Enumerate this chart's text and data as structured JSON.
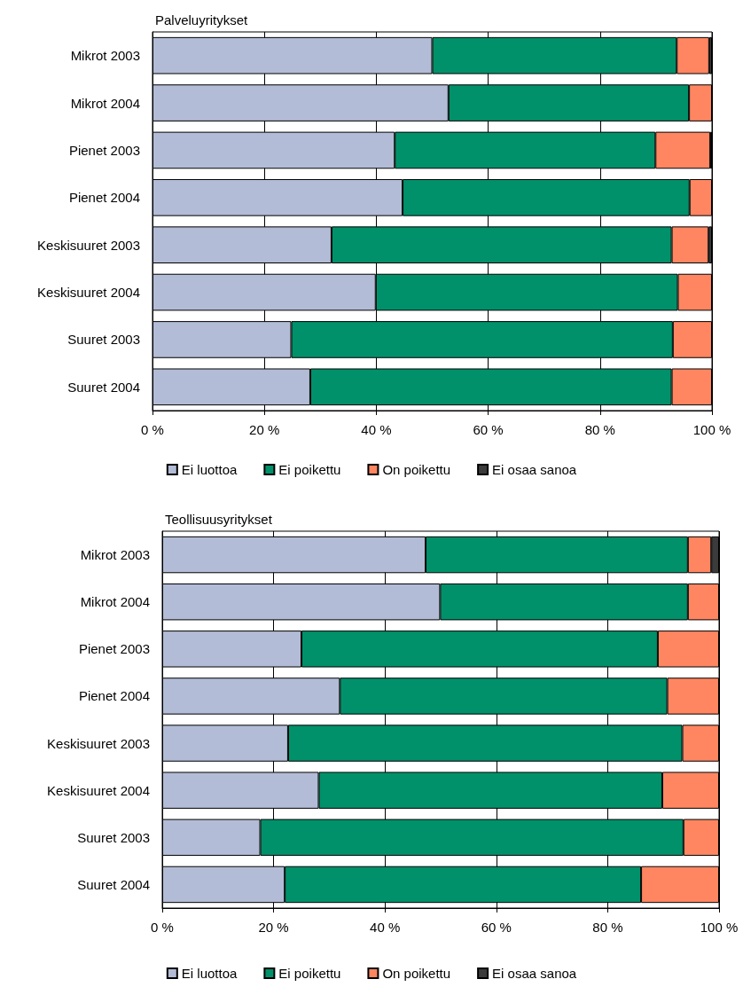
{
  "chart_data": [
    {
      "type": "bar",
      "orientation": "horizontal",
      "stacked": true,
      "title": "Palveluyritykset",
      "categories": [
        "Mikrot 2003",
        "Mikrot 2004",
        "Pienet 2003",
        "Pienet 2004",
        "Keskisuuret 2003",
        "Keskisuuret 2004",
        "Suuret 2003",
        "Suuret 2004"
      ],
      "series": [
        {
          "name": "Ei luottoa",
          "color": "#b2bcd6",
          "values": [
            50.0,
            52.9,
            43.3,
            44.7,
            32.0,
            39.9,
            24.8,
            28.2
          ]
        },
        {
          "name": "Ei poikettu",
          "color": "#00916a",
          "values": [
            43.7,
            43.0,
            46.6,
            51.3,
            60.8,
            54.0,
            68.2,
            64.6
          ]
        },
        {
          "name": "On poikettu",
          "color": "#ff8661",
          "values": [
            5.8,
            4.1,
            9.8,
            4.0,
            6.6,
            6.1,
            7.0,
            7.2
          ]
        },
        {
          "name": "Ei osaa sanoa",
          "color": "#3b3b3b",
          "values": [
            0.5,
            null,
            0.3,
            null,
            0.6,
            null,
            null,
            null
          ]
        }
      ],
      "xlim": [
        0,
        100
      ],
      "xticks": [
        {
          "value": 0,
          "label": "0 %"
        },
        {
          "value": 20,
          "label": "20 %"
        },
        {
          "value": 40,
          "label": "40 %"
        },
        {
          "value": 60,
          "label": "60 %"
        },
        {
          "value": 80,
          "label": "80 %"
        },
        {
          "value": 100,
          "label": "100 %"
        }
      ],
      "grid": "x",
      "legend": "bottom"
    },
    {
      "type": "bar",
      "orientation": "horizontal",
      "stacked": true,
      "title": "Teollisuusyritykset",
      "categories": [
        "Mikrot 2003",
        "Mikrot 2004",
        "Pienet 2003",
        "Pienet 2004",
        "Keskisuuret 2003",
        "Keskisuuret 2004",
        "Suuret 2003",
        "Suuret 2004"
      ],
      "series": [
        {
          "name": "Ei luottoa",
          "color": "#b2bcd6",
          "values": [
            47.3,
            49.9,
            25.0,
            31.9,
            22.6,
            28.1,
            17.6,
            22.0
          ]
        },
        {
          "name": "Ei poikettu",
          "color": "#00916a",
          "values": [
            47.1,
            44.5,
            64.0,
            58.8,
            70.8,
            61.7,
            76.0,
            64.0
          ]
        },
        {
          "name": "On poikettu",
          "color": "#ff8661",
          "values": [
            4.2,
            5.6,
            11.0,
            9.3,
            6.6,
            10.2,
            6.4,
            14.0
          ]
        },
        {
          "name": "Ei osaa sanoa",
          "color": "#3b3b3b",
          "values": [
            1.4,
            null,
            null,
            null,
            null,
            null,
            null,
            null
          ]
        }
      ],
      "xlim": [
        0,
        100
      ],
      "xticks": [
        {
          "value": 0,
          "label": "0 %"
        },
        {
          "value": 20,
          "label": "20 %"
        },
        {
          "value": 40,
          "label": "40 %"
        },
        {
          "value": 60,
          "label": "60 %"
        },
        {
          "value": 80,
          "label": "80 %"
        },
        {
          "value": 100,
          "label": "100 %"
        }
      ],
      "grid": "x",
      "legend": "bottom"
    }
  ]
}
